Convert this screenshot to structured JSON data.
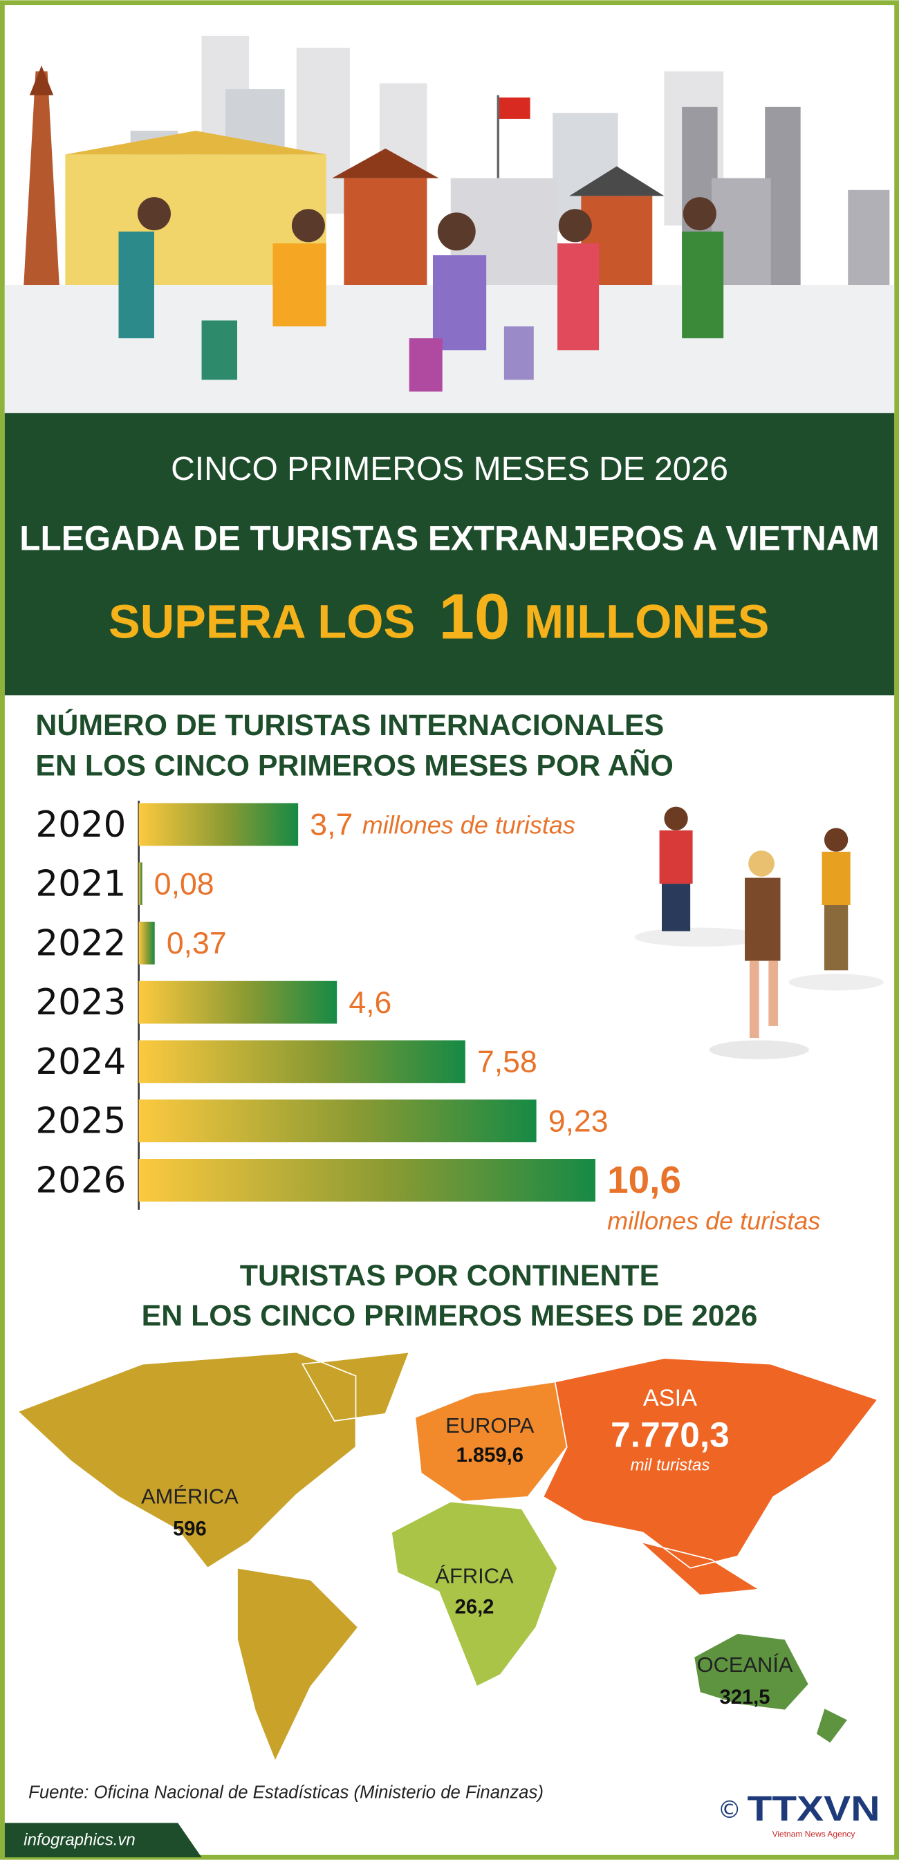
{
  "header": {
    "line1": "CINCO PRIMEROS MESES DE 2026",
    "line2": "LLEGADA DE TURISTAS EXTRANJEROS A VIETNAM",
    "line3": [
      "SUPERA LOS",
      "10",
      "MILLONES"
    ]
  },
  "chart_data": [
    {
      "type": "hbar",
      "title": [
        "NÚMERO DE TURISTAS INTERNACIONALES",
        "EN LOS CINCO PRIMEROS MESES POR AÑO"
      ],
      "categories": [
        "2020",
        "2021",
        "2022",
        "2023",
        "2024",
        "2025",
        "2026"
      ],
      "values": [
        3.7,
        0.08,
        0.37,
        4.6,
        7.58,
        9.23,
        10.6
      ],
      "value_labels": [
        "3,7",
        "0,08",
        "0,37",
        "4,6",
        "7,58",
        "9,23",
        "10,6"
      ],
      "unit_label": "millones de turistas",
      "colors": [
        "#fcc93f",
        "#168a45"
      ]
    },
    {
      "type": "map",
      "title": [
        "TURISTAS POR CONTINENTE",
        "EN LOS CINCO PRIMEROS MESES DE 2026"
      ],
      "categories": [
        "AMÉRICA",
        "EUROPA",
        "ASIA",
        "ÁFRICA",
        "OCEANÍA"
      ],
      "values": [
        596,
        1859.6,
        7770.3,
        26.2,
        321.5
      ],
      "value_labels": [
        "596",
        "1.859,6",
        "7.770,3",
        "26,2",
        "321,5"
      ],
      "unit_label": "mil turistas",
      "colors": [
        "#c9a229",
        "#f28a2c",
        "#ef6524",
        "#a9c447",
        "#5e9440"
      ]
    }
  ],
  "footer": {
    "source": "Fuente: Oficina Nacional de Estadísticas (Ministerio de Finanzas)",
    "site": "infographics.vn",
    "copyright": "©",
    "logo": "TTXVN",
    "logo_sub": "Vietnam News Agency"
  }
}
